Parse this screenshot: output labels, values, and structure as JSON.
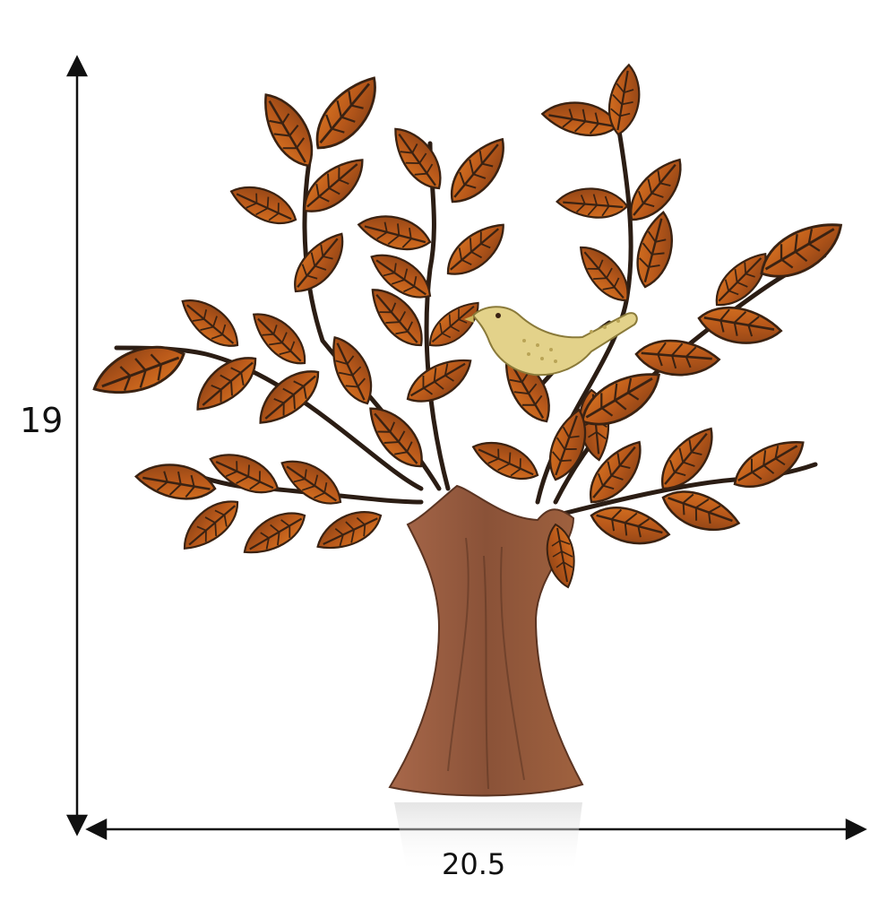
{
  "dimensions": {
    "height_label": "19",
    "width_label": "20.5"
  },
  "colors": {
    "leaf_orange": "#c8641c",
    "leaf_dark": "#3a2212",
    "trunk": "#9a5e3e",
    "trunk_dark": "#5a3422",
    "bird": "#e3d28a",
    "branch": "#2b1d14",
    "arrow": "#111111"
  }
}
